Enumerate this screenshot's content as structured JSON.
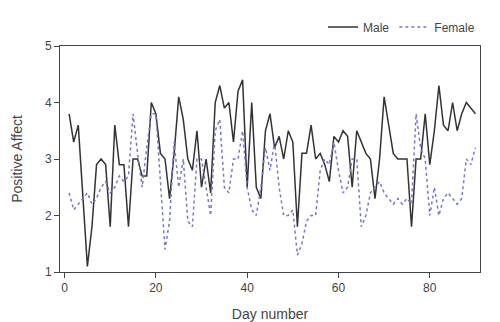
{
  "chart_data": {
    "type": "line",
    "xlabel": "Day number",
    "ylabel": "Positive Affect",
    "x": [
      1,
      2,
      3,
      4,
      5,
      6,
      7,
      8,
      9,
      10,
      11,
      12,
      13,
      14,
      15,
      16,
      17,
      18,
      19,
      20,
      21,
      22,
      23,
      24,
      25,
      26,
      27,
      28,
      29,
      30,
      31,
      32,
      33,
      34,
      35,
      36,
      37,
      38,
      39,
      40,
      41,
      42,
      43,
      44,
      45,
      46,
      47,
      48,
      49,
      50,
      51,
      52,
      53,
      54,
      55,
      56,
      57,
      58,
      59,
      60,
      61,
      62,
      63,
      64,
      65,
      66,
      67,
      68,
      69,
      70,
      71,
      72,
      73,
      74,
      75,
      76,
      77,
      78,
      79,
      80,
      81,
      82,
      83,
      84,
      85,
      86,
      87,
      88,
      89,
      90
    ],
    "series": [
      {
        "name": "Male",
        "color": "#333333",
        "line_style": "solid",
        "values": [
          3.8,
          3.3,
          3.6,
          2.3,
          1.1,
          1.8,
          2.9,
          3.0,
          2.9,
          1.8,
          3.6,
          2.9,
          2.9,
          1.8,
          3.0,
          3.0,
          2.7,
          2.7,
          4.0,
          3.8,
          3.1,
          3.0,
          2.3,
          3.1,
          4.1,
          3.7,
          3.0,
          2.8,
          3.5,
          2.5,
          3.0,
          2.4,
          4.0,
          4.3,
          3.9,
          4.0,
          3.3,
          4.2,
          4.4,
          2.5,
          4.0,
          2.5,
          2.3,
          3.5,
          3.8,
          3.2,
          3.4,
          3.0,
          3.5,
          3.3,
          1.8,
          3.1,
          3.1,
          3.6,
          3.0,
          3.1,
          2.9,
          2.6,
          3.4,
          3.3,
          3.5,
          3.4,
          2.5,
          3.5,
          3.3,
          3.1,
          3.0,
          2.3,
          3.0,
          4.1,
          3.6,
          3.1,
          3.0,
          3.0,
          3.0,
          1.8,
          3.0,
          3.0,
          3.8,
          2.9,
          3.5,
          4.3,
          3.6,
          3.5,
          4.0,
          3.5,
          3.8,
          4.0,
          3.9,
          3.8
        ]
      },
      {
        "name": "Female",
        "color": "#7777cc",
        "line_style": "dotted",
        "values": [
          2.4,
          2.1,
          2.2,
          2.3,
          2.4,
          2.2,
          2.3,
          2.5,
          2.6,
          2.4,
          2.5,
          2.7,
          2.6,
          2.7,
          3.8,
          3.1,
          2.5,
          3.2,
          3.8,
          3.8,
          2.5,
          1.4,
          1.9,
          3.3,
          2.5,
          3.0,
          1.9,
          1.8,
          3.0,
          3.0,
          2.5,
          2.0,
          3.5,
          3.7,
          2.5,
          2.4,
          3.0,
          3.0,
          3.5,
          2.5,
          2.1,
          2.0,
          2.5,
          3.2,
          2.8,
          3.3,
          2.5,
          2.0,
          2.0,
          2.1,
          1.3,
          1.5,
          1.9,
          2.0,
          2.0,
          2.8,
          3.0,
          2.9,
          3.3,
          2.8,
          2.4,
          2.5,
          3.0,
          3.0,
          1.8,
          2.0,
          2.4,
          2.5,
          2.6,
          2.4,
          2.3,
          2.2,
          2.3,
          2.2,
          2.3,
          2.2,
          3.8,
          3.2,
          3.0,
          2.0,
          2.5,
          2.0,
          2.3,
          2.4,
          2.3,
          2.2,
          2.3,
          3.0,
          2.9,
          3.2
        ]
      }
    ],
    "xlim": [
      -1,
      91
    ],
    "ylim": [
      1,
      5
    ],
    "xticks": [
      0,
      20,
      40,
      60,
      80
    ],
    "yticks": [
      1,
      2,
      3,
      4,
      5
    ],
    "grid": false,
    "legend": "upper right"
  }
}
